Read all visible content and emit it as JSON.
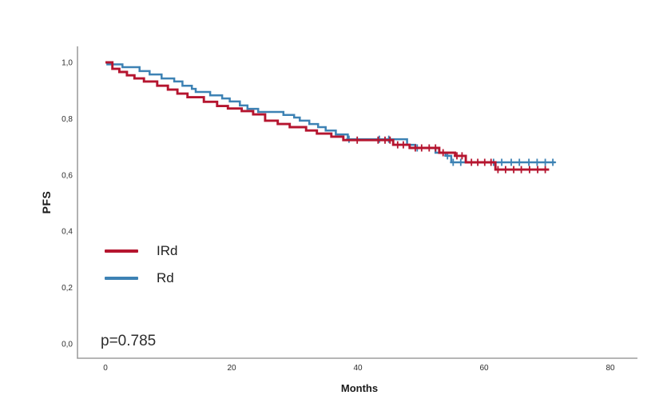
{
  "chart_data": {
    "type": "line",
    "subtype": "kaplan-meier-step",
    "title": "",
    "xlabel": "Months",
    "ylabel": "PFS",
    "annotation": "p=0.785",
    "grid": false,
    "legend_position": "inside-left",
    "axis_color": "#9e9e9e",
    "xlim": [
      -4.4,
      84.3
    ],
    "ylim": [
      -0.05,
      1.11
    ],
    "x_ticks": {
      "values": [
        0,
        20,
        40,
        60,
        80
      ],
      "labels": [
        "0",
        "20",
        "40",
        "60",
        "80"
      ]
    },
    "y_ticks": {
      "values": [
        1.0,
        0.8,
        0.6,
        0.4,
        0.2,
        0.0
      ],
      "labels": [
        "1,0",
        "0,8",
        "0,6",
        "0,4",
        "0,2",
        "0,0"
      ]
    },
    "series": [
      {
        "name": "IRd",
        "color": "#b5152f",
        "end_month": 70.3,
        "steps": [
          [
            0,
            1.0
          ],
          [
            1.1,
            0.977
          ],
          [
            2.2,
            0.966
          ],
          [
            3.4,
            0.954
          ],
          [
            4.6,
            0.943
          ],
          [
            6.1,
            0.932
          ],
          [
            8.2,
            0.917
          ],
          [
            9.9,
            0.903
          ],
          [
            11.4,
            0.889
          ],
          [
            13.0,
            0.876
          ],
          [
            15.6,
            0.86
          ],
          [
            17.7,
            0.845
          ],
          [
            19.4,
            0.836
          ],
          [
            21.6,
            0.827
          ],
          [
            23.4,
            0.815
          ],
          [
            25.3,
            0.793
          ],
          [
            27.3,
            0.781
          ],
          [
            29.2,
            0.77
          ],
          [
            31.8,
            0.758
          ],
          [
            33.5,
            0.747
          ],
          [
            35.8,
            0.736
          ],
          [
            37.7,
            0.724
          ],
          [
            45.6,
            0.707
          ],
          [
            48.2,
            0.696
          ],
          [
            52.9,
            0.679
          ],
          [
            55.4,
            0.668
          ],
          [
            57.1,
            0.645
          ],
          [
            61.8,
            0.619
          ]
        ],
        "censored": [
          [
            39.9,
            0.724
          ],
          [
            43.2,
            0.724
          ],
          [
            44.3,
            0.724
          ],
          [
            45.1,
            0.724
          ],
          [
            46.3,
            0.707
          ],
          [
            47.2,
            0.707
          ],
          [
            49.1,
            0.696
          ],
          [
            50.1,
            0.696
          ],
          [
            51.3,
            0.696
          ],
          [
            52.3,
            0.696
          ],
          [
            53.5,
            0.679
          ],
          [
            55.7,
            0.668
          ],
          [
            56.5,
            0.668
          ],
          [
            58.0,
            0.645
          ],
          [
            59.0,
            0.645
          ],
          [
            60.1,
            0.645
          ],
          [
            61.1,
            0.645
          ],
          [
            62.2,
            0.619
          ],
          [
            63.4,
            0.619
          ],
          [
            64.7,
            0.619
          ],
          [
            65.9,
            0.619
          ],
          [
            67.2,
            0.619
          ],
          [
            68.5,
            0.619
          ],
          [
            69.7,
            0.619
          ]
        ]
      },
      {
        "name": "Rd",
        "color": "#3d82b4",
        "end_month": 71.3,
        "steps": [
          [
            0,
            1.0
          ],
          [
            0.3,
            0.993
          ],
          [
            2.7,
            0.983
          ],
          [
            5.4,
            0.969
          ],
          [
            7.0,
            0.957
          ],
          [
            8.9,
            0.943
          ],
          [
            10.9,
            0.932
          ],
          [
            12.2,
            0.917
          ],
          [
            13.7,
            0.906
          ],
          [
            14.3,
            0.895
          ],
          [
            16.6,
            0.883
          ],
          [
            18.5,
            0.872
          ],
          [
            19.7,
            0.861
          ],
          [
            21.3,
            0.847
          ],
          [
            22.5,
            0.835
          ],
          [
            24.2,
            0.824
          ],
          [
            28.2,
            0.813
          ],
          [
            29.9,
            0.804
          ],
          [
            30.8,
            0.793
          ],
          [
            32.3,
            0.781
          ],
          [
            33.7,
            0.77
          ],
          [
            34.9,
            0.758
          ],
          [
            36.5,
            0.744
          ],
          [
            38.4,
            0.727
          ],
          [
            47.8,
            0.707
          ],
          [
            49.1,
            0.696
          ],
          [
            52.3,
            0.679
          ],
          [
            53.9,
            0.668
          ],
          [
            54.8,
            0.645
          ]
        ],
        "censored": [
          [
            38.6,
            0.727
          ],
          [
            43.4,
            0.727
          ],
          [
            44.9,
            0.727
          ],
          [
            49.4,
            0.696
          ],
          [
            54.2,
            0.668
          ],
          [
            55.1,
            0.645
          ],
          [
            56.3,
            0.645
          ],
          [
            61.5,
            0.645
          ],
          [
            62.8,
            0.645
          ],
          [
            64.3,
            0.645
          ],
          [
            65.6,
            0.645
          ],
          [
            67.1,
            0.645
          ],
          [
            68.4,
            0.645
          ],
          [
            69.7,
            0.645
          ],
          [
            70.9,
            0.645
          ]
        ]
      }
    ]
  }
}
